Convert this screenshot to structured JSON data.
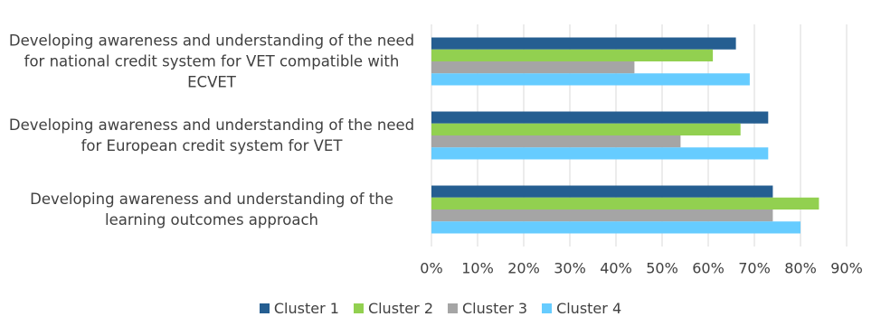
{
  "chart_data": {
    "type": "hbar",
    "categories": [
      "Developing awareness and understanding of the need for national credit system for VET compatible with ECVET",
      "Developing awareness and understanding of the need for European credit system for VET",
      "Developing awareness and understanding of the learning outcomes approach"
    ],
    "series": [
      {
        "name": "Cluster 1",
        "color": "#255e91",
        "values": [
          66,
          73,
          74
        ]
      },
      {
        "name": "Cluster 2",
        "color": "#92d050",
        "values": [
          61,
          67,
          84
        ]
      },
      {
        "name": "Cluster 3",
        "color": "#a5a5a5",
        "values": [
          44,
          54,
          74
        ]
      },
      {
        "name": "Cluster 4",
        "color": "#66ccff",
        "values": [
          69,
          73,
          80
        ]
      }
    ],
    "xlim": [
      0,
      90
    ],
    "xticks": [
      {
        "value": 0,
        "label": "0%"
      },
      {
        "value": 10,
        "label": "10%"
      },
      {
        "value": 20,
        "label": "20%"
      },
      {
        "value": 30,
        "label": "30%"
      },
      {
        "value": 40,
        "label": "40%"
      },
      {
        "value": 50,
        "label": "50%"
      },
      {
        "value": 60,
        "label": "60%"
      },
      {
        "value": 70,
        "label": "70%"
      },
      {
        "value": 80,
        "label": "80%"
      },
      {
        "value": 90,
        "label": "90%"
      }
    ],
    "grid": true,
    "legend": "bottom"
  }
}
